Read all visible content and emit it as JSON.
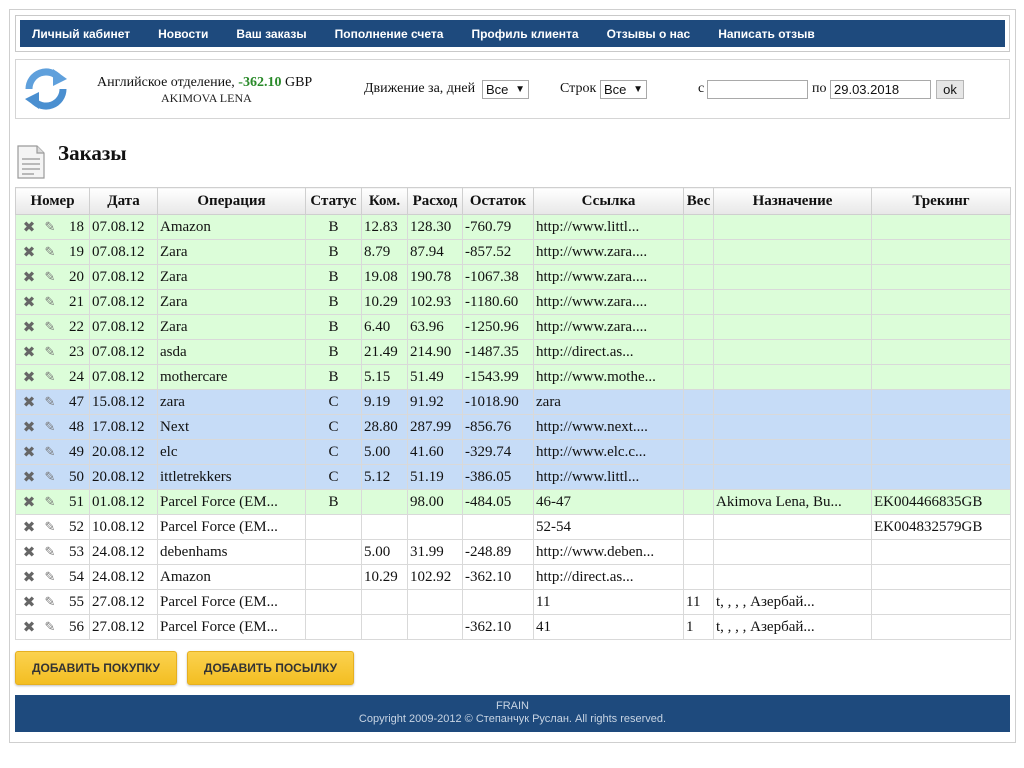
{
  "nav": {
    "items": [
      "Личный кабинет",
      "Новости",
      "Ваш заказы",
      "Пополнение счета",
      "Профиль клиента",
      "Отзывы о нас",
      "Написать отзыв"
    ]
  },
  "account": {
    "dept_label": "Английское отделение,",
    "balance": "-362.10",
    "currency": "GBP",
    "name": "AKIMOVA LENA",
    "movement_label": "Движение за, дней",
    "movement_value": "Все",
    "rows_label": "Строк",
    "rows_value": "Все",
    "from_label": "с",
    "from_value": "",
    "to_label": "по",
    "to_value": "29.03.2018",
    "ok_label": "ok"
  },
  "page_title": "Заказы",
  "table": {
    "headers": [
      "Номер",
      "Дата",
      "Операция",
      "Статус",
      "Ком.",
      "Расход",
      "Остаток",
      "Ссылка",
      "Вес",
      "Назначение",
      "Трекинг"
    ],
    "rows": [
      {
        "num": "18",
        "date": "07.08.12",
        "op": "Amazon",
        "status": "B",
        "kom": "12.83",
        "rashod": "128.30",
        "ostatok": "-760.79",
        "link": "http://www.littl...",
        "ves": "",
        "naznach": "",
        "track": "",
        "color": "green"
      },
      {
        "num": "19",
        "date": "07.08.12",
        "op": "Zara",
        "status": "B",
        "kom": "8.79",
        "rashod": "87.94",
        "ostatok": "-857.52",
        "link": "http://www.zara....",
        "ves": "",
        "naznach": "",
        "track": "",
        "color": "green"
      },
      {
        "num": "20",
        "date": "07.08.12",
        "op": "Zara",
        "status": "B",
        "kom": "19.08",
        "rashod": "190.78",
        "ostatok": "-1067.38",
        "link": "http://www.zara....",
        "ves": "",
        "naznach": "",
        "track": "",
        "color": "green"
      },
      {
        "num": "21",
        "date": "07.08.12",
        "op": "Zara",
        "status": "B",
        "kom": "10.29",
        "rashod": "102.93",
        "ostatok": "-1180.60",
        "link": "http://www.zara....",
        "ves": "",
        "naznach": "",
        "track": "",
        "color": "green"
      },
      {
        "num": "22",
        "date": "07.08.12",
        "op": "Zara",
        "status": "B",
        "kom": "6.40",
        "rashod": "63.96",
        "ostatok": "-1250.96",
        "link": "http://www.zara....",
        "ves": "",
        "naznach": "",
        "track": "",
        "color": "green"
      },
      {
        "num": "23",
        "date": "07.08.12",
        "op": "asda",
        "status": "B",
        "kom": "21.49",
        "rashod": "214.90",
        "ostatok": "-1487.35",
        "link": "http://direct.as...",
        "ves": "",
        "naznach": "",
        "track": "",
        "color": "green"
      },
      {
        "num": "24",
        "date": "07.08.12",
        "op": "mothercare",
        "status": "B",
        "kom": "5.15",
        "rashod": "51.49",
        "ostatok": "-1543.99",
        "link": "http://www.mothe...",
        "ves": "",
        "naznach": "",
        "track": "",
        "color": "green"
      },
      {
        "num": "47",
        "date": "15.08.12",
        "op": "zara",
        "status": "C",
        "kom": "9.19",
        "rashod": "91.92",
        "ostatok": "-1018.90",
        "link": "zara",
        "ves": "",
        "naznach": "",
        "track": "",
        "color": "blue"
      },
      {
        "num": "48",
        "date": "17.08.12",
        "op": "Next",
        "status": "C",
        "kom": "28.80",
        "rashod": "287.99",
        "ostatok": "-856.76",
        "link": "http://www.next....",
        "ves": "",
        "naznach": "",
        "track": "",
        "color": "blue"
      },
      {
        "num": "49",
        "date": "20.08.12",
        "op": "elc",
        "status": "C",
        "kom": "5.00",
        "rashod": "41.60",
        "ostatok": "-329.74",
        "link": "http://www.elc.c...",
        "ves": "",
        "naznach": "",
        "track": "",
        "color": "blue"
      },
      {
        "num": "50",
        "date": "20.08.12",
        "op": "ittletrekkers",
        "status": "C",
        "kom": "5.12",
        "rashod": "51.19",
        "ostatok": "-386.05",
        "link": "http://www.littl...",
        "ves": "",
        "naznach": "",
        "track": "",
        "color": "blue"
      },
      {
        "num": "51",
        "date": "01.08.12",
        "op": "Parcel Force (EM...",
        "status": "B",
        "kom": "",
        "rashod": "98.00",
        "ostatok": "-484.05",
        "link": "46-47",
        "ves": "",
        "naznach": "Akimova Lena, Bu...",
        "track": "EK004466835GB",
        "color": "green"
      },
      {
        "num": "52",
        "date": "10.08.12",
        "op": "Parcel Force (EM...",
        "status": "",
        "kom": "",
        "rashod": "",
        "ostatok": "",
        "link": "52-54",
        "ves": "",
        "naznach": "",
        "track": "EK004832579GB",
        "color": "white"
      },
      {
        "num": "53",
        "date": "24.08.12",
        "op": "debenhams",
        "status": "",
        "kom": "5.00",
        "rashod": "31.99",
        "ostatok": "-248.89",
        "link": "http://www.deben...",
        "ves": "",
        "naznach": "",
        "track": "",
        "color": "white"
      },
      {
        "num": "54",
        "date": "24.08.12",
        "op": "Amazon",
        "status": "",
        "kom": "10.29",
        "rashod": "102.92",
        "ostatok": "-362.10",
        "link": "http://direct.as...",
        "ves": "",
        "naznach": "",
        "track": "",
        "color": "white"
      },
      {
        "num": "55",
        "date": "27.08.12",
        "op": "Parcel Force (EM...",
        "status": "",
        "kom": "",
        "rashod": "",
        "ostatok": "",
        "link": "11",
        "ves": "11",
        "naznach": "t, , , , Азербай...",
        "track": "",
        "color": "white"
      },
      {
        "num": "56",
        "date": "27.08.12",
        "op": "Parcel Force (EM...",
        "status": "",
        "kom": "",
        "rashod": "",
        "ostatok": "-362.10",
        "link": "41",
        "ves": "1",
        "naznach": "t, , , , Азербай...",
        "track": "",
        "color": "white"
      }
    ]
  },
  "buttons": {
    "add_purchase": "ДОБАВИТЬ ПОКУПКУ",
    "add_parcel": "ДОБАВИТЬ ПОСЫЛКУ"
  },
  "footer": {
    "brand": "FRAIN",
    "copyright": "Copyright 2009-2012 © Степанчук Руслан. All rights reserved."
  },
  "colors": {
    "nav_bg": "#1e4a7d",
    "row_green": "#dcfdd9",
    "row_blue": "#c6dcf7",
    "button_yellow": "#f7c933",
    "balance_green": "#2a8a2a"
  }
}
